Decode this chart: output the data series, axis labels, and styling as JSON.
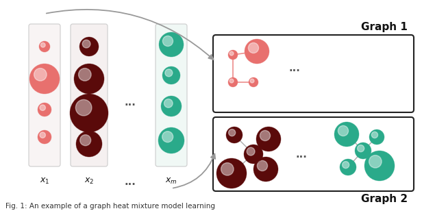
{
  "bg_color": "#ffffff",
  "pink_color": "#e8706e",
  "dark_red_color": "#5a0a0a",
  "teal_color": "#2aaa8a",
  "edge_color": "#aaaaaa",
  "box_edge_color": "#222222",
  "col_box_color": "#f0f0f0",
  "col_box_edge": "#cccccc",
  "arrow_color": "#999999",
  "text_color": "#111111",
  "dots_color": "#555555",
  "graph1_label": "Graph 1",
  "graph2_label": "Graph 2",
  "dots": "...",
  "caption": "Fig. 1: An example of a graph heat mixture model learning"
}
